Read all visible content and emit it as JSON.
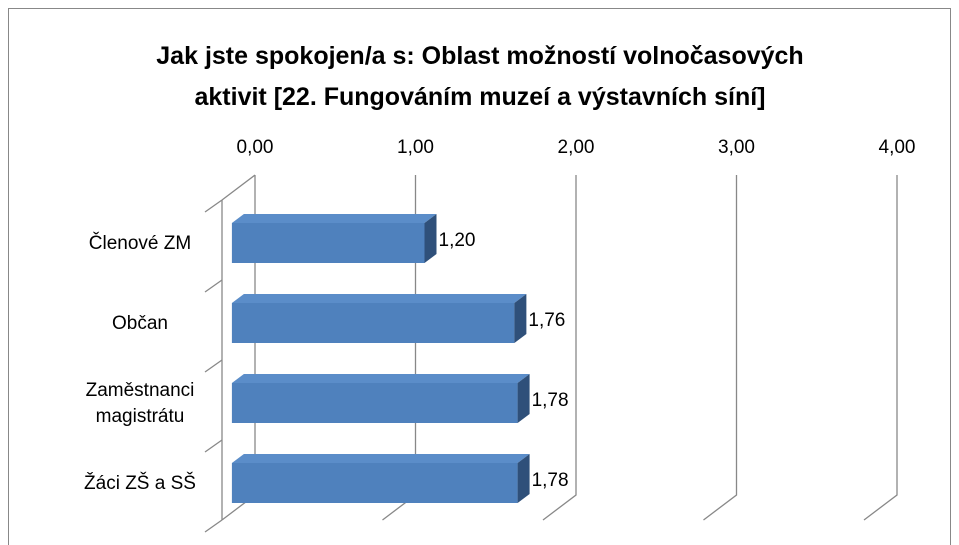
{
  "chart_data": {
    "type": "bar",
    "orientation": "horizontal",
    "title": "Jak jste spokojen/a s: Oblast možností volnočasových aktivit [22. Fungováním muzeí a výstavních síní]",
    "categories": [
      "Členové ZM",
      "Občan",
      "Zaměstnanci magistrátu",
      "Žáci ZŠ a SŠ"
    ],
    "values": [
      1.2,
      1.76,
      1.78,
      1.78
    ],
    "value_labels": [
      "1,20",
      "1,76",
      "1,78",
      "1,78"
    ],
    "color": "#4f81bd",
    "xlim": [
      0,
      4
    ],
    "xticks": [
      {
        "value": 0,
        "label": "0,00"
      },
      {
        "value": 1,
        "label": "1,00"
      },
      {
        "value": 2,
        "label": "2,00"
      },
      {
        "value": 3,
        "label": "3,00"
      },
      {
        "value": 4,
        "label": "4,00"
      }
    ],
    "grid": true
  }
}
